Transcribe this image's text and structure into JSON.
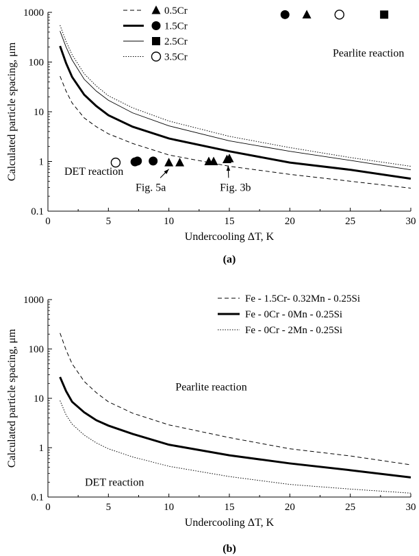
{
  "chart_data": [
    {
      "type": "line",
      "panel_label": "(a)",
      "xlabel": "Undercooling ΔT, K",
      "ylabel": "Calculated particle spacing,  μm",
      "xlim": [
        0,
        30
      ],
      "ylim": [
        0.1,
        1000
      ],
      "yscale": "log",
      "x_ticks": [
        "0",
        "5",
        "10",
        "15",
        "20",
        "25",
        "30"
      ],
      "y_ticks": [
        "0.1",
        "1",
        "10",
        "100",
        "1000"
      ],
      "legend_position": "top-left",
      "series": [
        {
          "name": "0.5Cr",
          "line_style": "dashed",
          "x": [
            1,
            1.5,
            2,
            3,
            4,
            5,
            7,
            10,
            15,
            20,
            25,
            30
          ],
          "y": [
            52,
            26,
            15,
            7.5,
            5,
            3.6,
            2.3,
            1.35,
            0.8,
            0.55,
            0.4,
            0.29
          ]
        },
        {
          "name": "1.5Cr",
          "line_style": "thick",
          "x": [
            1,
            1.5,
            2,
            3,
            4,
            5,
            7,
            10,
            15,
            20,
            25,
            30
          ],
          "y": [
            210,
            95,
            50,
            22,
            13,
            8.5,
            5,
            2.9,
            1.6,
            0.95,
            0.68,
            0.45
          ]
        },
        {
          "name": "2.5Cr",
          "line_style": "thin",
          "x": [
            1,
            1.5,
            2,
            3,
            4,
            5,
            7,
            10,
            15,
            20,
            25,
            30
          ],
          "y": [
            420,
            200,
            110,
            45,
            26,
            17,
            9.5,
            5.2,
            2.6,
            1.6,
            1.05,
            0.68
          ]
        },
        {
          "name": "3.5Cr",
          "line_style": "dotted",
          "x": [
            1,
            1.5,
            2,
            3,
            4,
            5,
            7,
            10,
            15,
            20,
            25,
            30
          ],
          "y": [
            550,
            260,
            140,
            58,
            33,
            21,
            12,
            6.5,
            3.2,
            1.9,
            1.2,
            0.8
          ]
        }
      ],
      "points": [
        {
          "series": "0.5Cr",
          "marker": "triangle",
          "x": [
            10,
            10.9,
            13.3,
            13.7,
            14.8,
            15
          ],
          "y": [
            0.95,
            0.95,
            1.0,
            1.0,
            1.1,
            1.15
          ]
        },
        {
          "series": "1.5Cr",
          "marker": "circle",
          "x": [
            7.2,
            7.4,
            8.7
          ],
          "y": [
            0.98,
            1.02,
            1.02
          ]
        },
        {
          "series": "3.5Cr",
          "marker": "open-circle",
          "x": [
            5.6
          ],
          "y": [
            0.95
          ]
        },
        {
          "series": "1.5Cr",
          "marker": "circle",
          "x": [
            19.6
          ],
          "y": [
            900
          ]
        },
        {
          "series": "0.5Cr",
          "marker": "triangle",
          "x": [
            21.4
          ],
          "y": [
            900
          ]
        },
        {
          "series": "3.5Cr",
          "marker": "open-circle",
          "x": [
            24.1
          ],
          "y": [
            900
          ]
        },
        {
          "series": "2.5Cr",
          "marker": "square",
          "x": [
            27.8
          ],
          "y": [
            900
          ]
        }
      ],
      "annotations": [
        {
          "text": "Pearlite reaction",
          "x": 26.5,
          "y": 150
        },
        {
          "text": "DET reaction",
          "x": 3.8,
          "y": 0.63
        },
        {
          "text": "Fig. 5a",
          "x": 8.5,
          "y": 0.3,
          "arrow_to": [
            10,
            0.85
          ]
        },
        {
          "text": "Fig. 3b",
          "x": 15.5,
          "y": 0.3,
          "arrow_to": [
            14.9,
            1.0
          ]
        }
      ]
    },
    {
      "type": "line",
      "panel_label": "(b)",
      "xlabel": "Undercooling ΔT, K",
      "ylabel": "Calculated particle spacing,  μm",
      "xlim": [
        0,
        30
      ],
      "ylim": [
        0.1,
        1000
      ],
      "yscale": "log",
      "x_ticks": [
        "0",
        "5",
        "10",
        "15",
        "20",
        "25",
        "30"
      ],
      "y_ticks": [
        "0.1",
        "1",
        "10",
        "100",
        "1000"
      ],
      "legend_position": "top-right",
      "series": [
        {
          "name": "Fe - 1.5Cr- 0.32Mn - 0.25Si",
          "line_style": "dashed",
          "x": [
            1,
            1.5,
            2,
            3,
            4,
            5,
            7,
            10,
            15,
            20,
            25,
            30
          ],
          "y": [
            210,
            95,
            50,
            22,
            13,
            8.5,
            5,
            2.9,
            1.6,
            0.95,
            0.68,
            0.45
          ]
        },
        {
          "name": "Fe - 0Cr - 0Mn - 0.25Si",
          "line_style": "thick",
          "x": [
            1,
            1.5,
            2,
            3,
            4,
            5,
            7,
            10,
            15,
            20,
            25,
            30
          ],
          "y": [
            27,
            14,
            8.5,
            5.2,
            3.6,
            2.8,
            1.9,
            1.15,
            0.7,
            0.48,
            0.35,
            0.25
          ]
        },
        {
          "name": "Fe - 0Cr - 2Mn - 0.25Si",
          "line_style": "dotted",
          "x": [
            1,
            1.5,
            2,
            3,
            4,
            5,
            7,
            10,
            15,
            20,
            25,
            30
          ],
          "y": [
            9,
            4.6,
            3.0,
            1.8,
            1.25,
            0.95,
            0.65,
            0.42,
            0.26,
            0.18,
            0.145,
            0.12
          ]
        }
      ],
      "annotations": [
        {
          "text": "Pearlite reaction",
          "x": 13.5,
          "y": 17
        },
        {
          "text": "DET reaction",
          "x": 5.5,
          "y": 0.2
        }
      ]
    }
  ]
}
